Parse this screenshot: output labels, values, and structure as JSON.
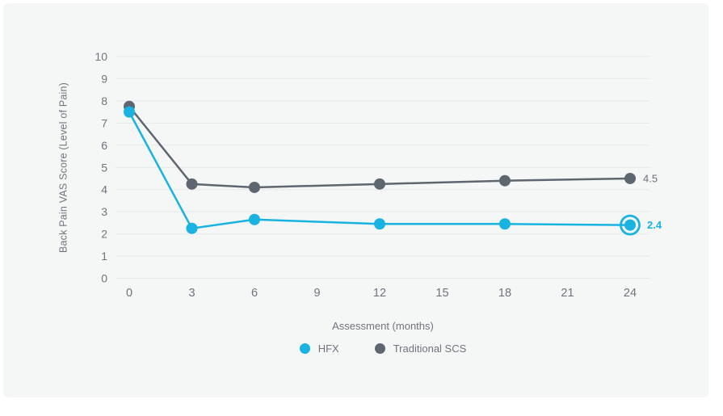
{
  "page": {
    "background_color": "#ffffff",
    "card_background_color": "#f5f6f6"
  },
  "chart_data": {
    "type": "line",
    "title": "",
    "ylabel": "Back Pain VAS Score (Level of Pain)",
    "xlabel": "Assessment (months)",
    "ylim": [
      0,
      10
    ],
    "xlim": [
      0,
      24
    ],
    "y_ticks": [
      0,
      1,
      2,
      3,
      4,
      5,
      6,
      7,
      8,
      9,
      10
    ],
    "x_ticks": [
      0,
      3,
      6,
      9,
      12,
      15,
      18,
      21,
      24
    ],
    "grid": "horizontal-only",
    "grid_color": "#e7e8e9",
    "axis_text_color": "#6e757d",
    "legend_position": "bottom",
    "x": [
      0,
      3,
      6,
      12,
      18,
      24
    ],
    "series": [
      {
        "name": "HFX",
        "color": "#19b3e2",
        "values": [
          7.5,
          2.25,
          2.65,
          2.45,
          2.45,
          2.4
        ],
        "end_label": "2.4",
        "end_label_color": "#19b3e2",
        "end_label_bold": true,
        "highlight_last_point": true
      },
      {
        "name": "Traditional SCS",
        "color": "#5e6670",
        "values": [
          7.75,
          4.25,
          4.1,
          4.25,
          4.4,
          4.5
        ],
        "end_label": "4.5",
        "end_label_color": "#6b737b",
        "end_label_bold": false,
        "highlight_last_point": false
      }
    ]
  }
}
